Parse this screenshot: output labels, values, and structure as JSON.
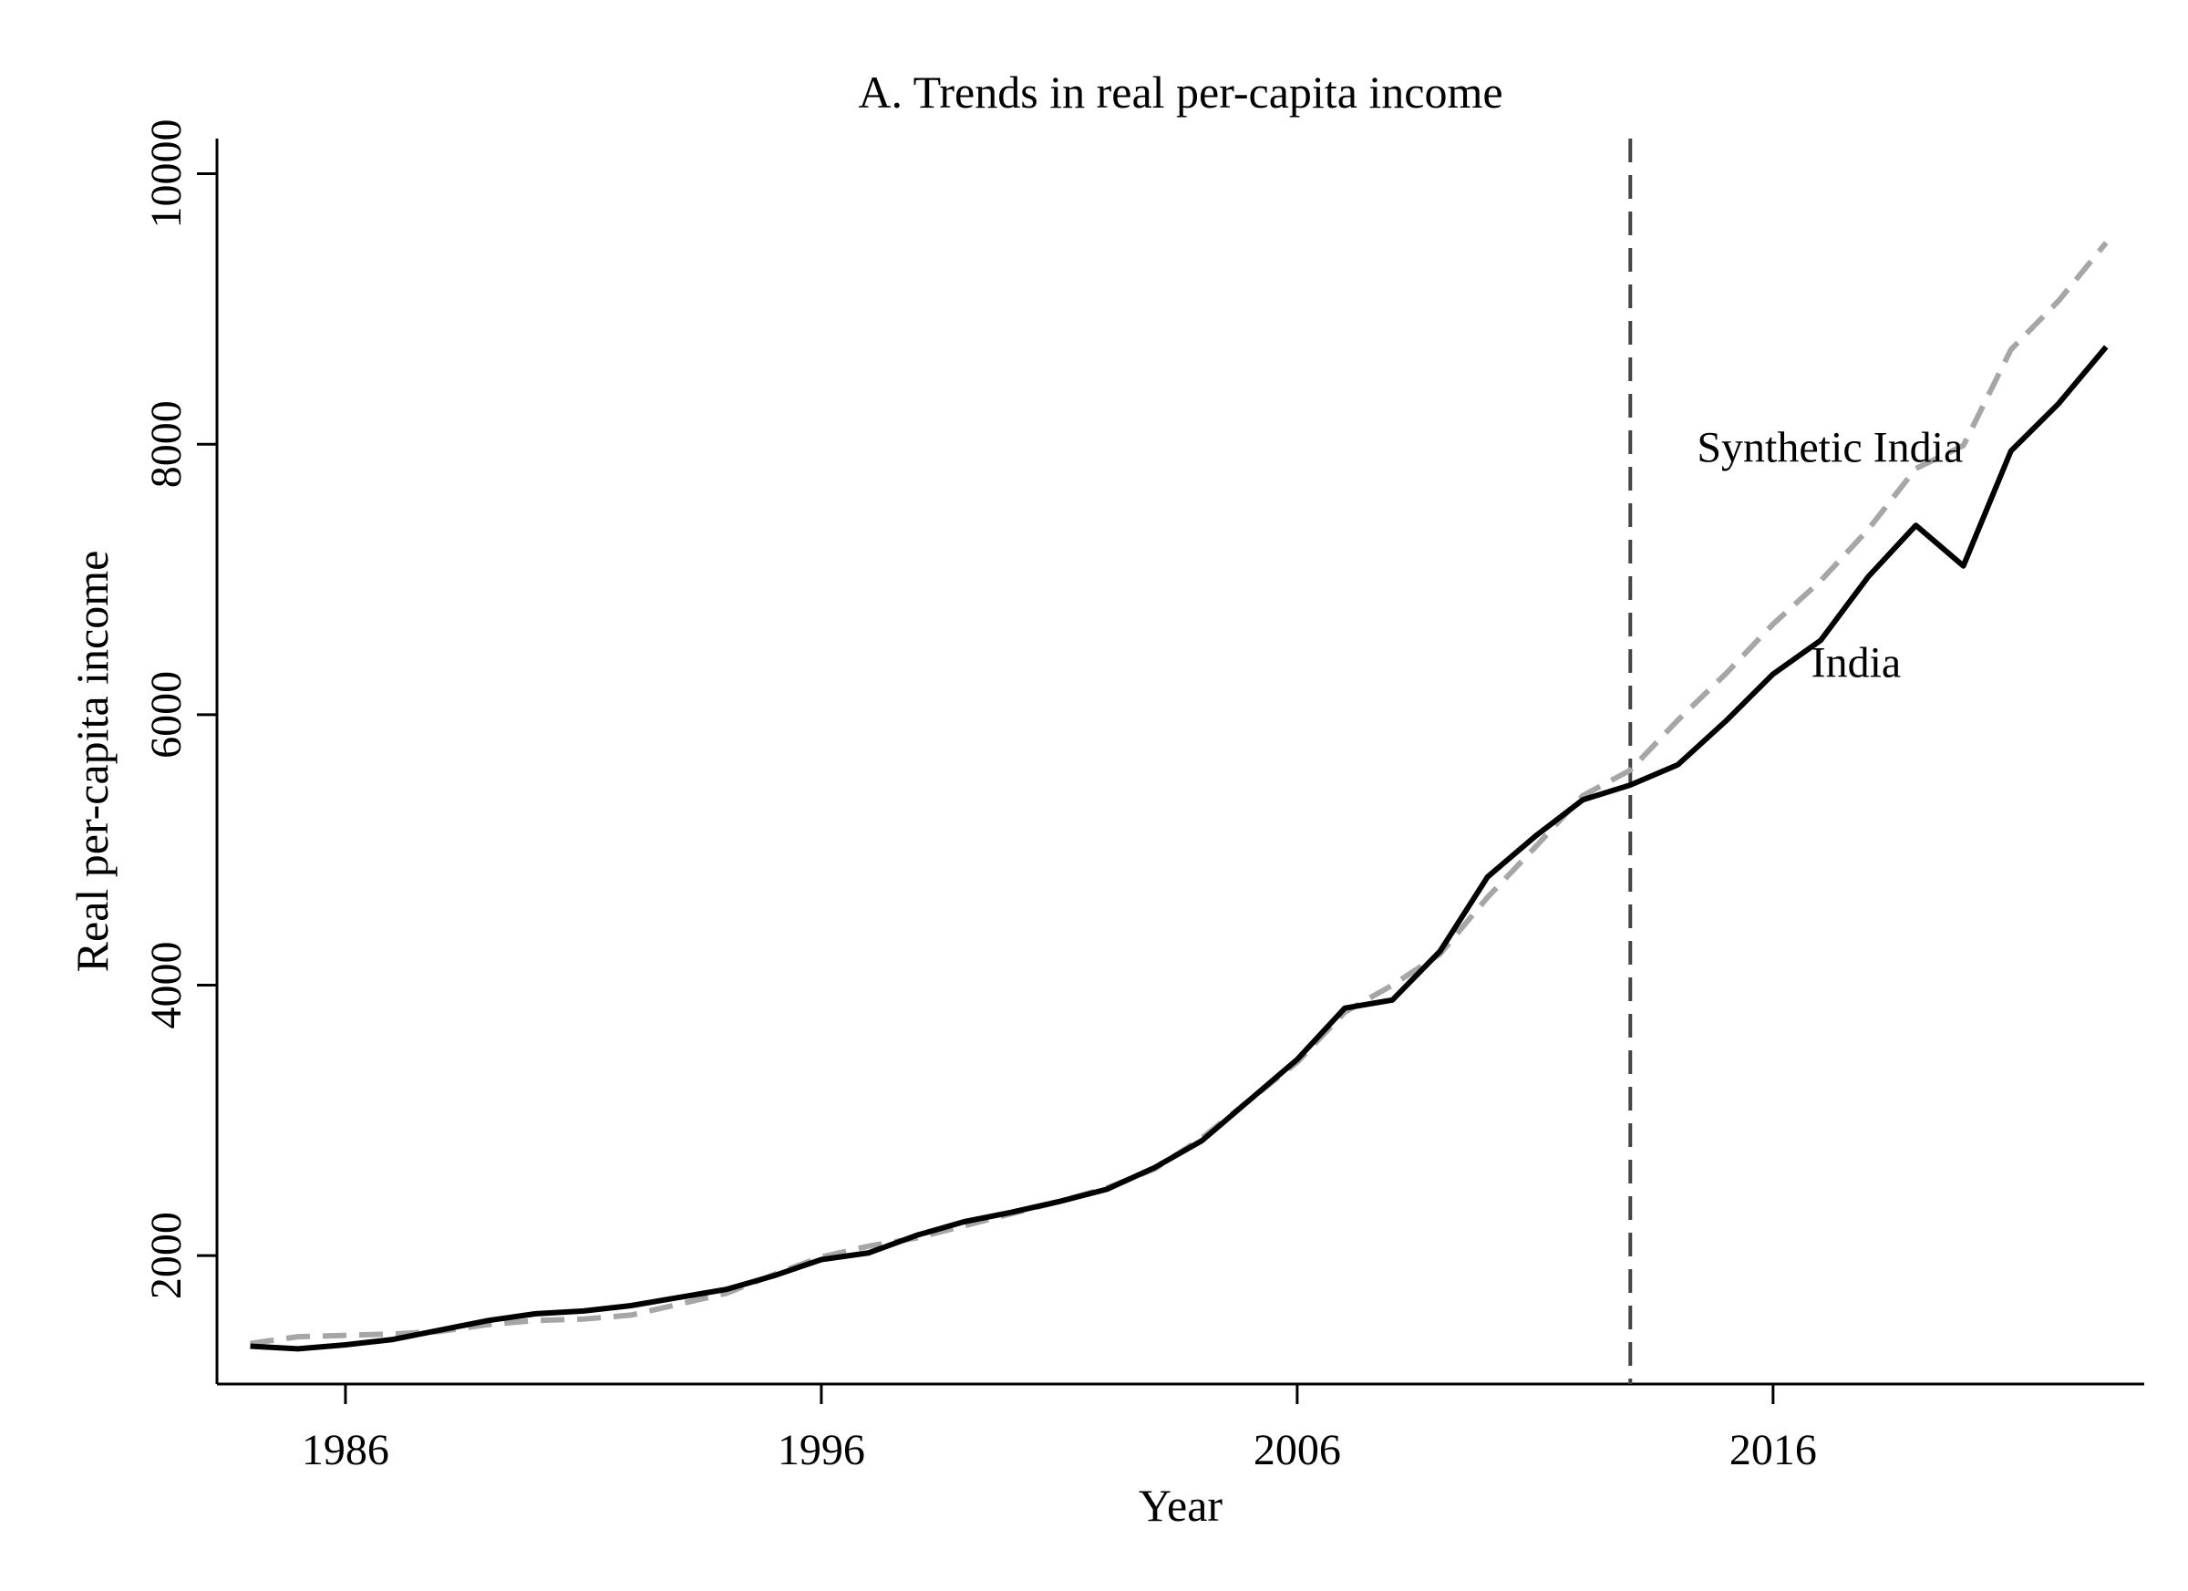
{
  "chart_data": {
    "type": "line",
    "title": "A. Trends in real per-capita income",
    "xlabel": "Year",
    "ylabel": "Real per-capita income",
    "xlim": [
      1983.3,
      2023.8
    ],
    "ylim": [
      1050,
      10260
    ],
    "x_ticks": [
      1986,
      1996,
      2006,
      2016
    ],
    "y_ticks": [
      2000,
      4000,
      6000,
      8000,
      10000
    ],
    "grid": false,
    "treatment_year": 2013,
    "treatment_line_color": "#444444",
    "x": [
      1984,
      1985,
      1986,
      1987,
      1988,
      1989,
      1990,
      1991,
      1992,
      1993,
      1994,
      1995,
      1996,
      1997,
      1998,
      1999,
      2000,
      2001,
      2002,
      2003,
      2004,
      2005,
      2006,
      2007,
      2008,
      2009,
      2010,
      2011,
      2012,
      2013,
      2014,
      2015,
      2016,
      2017,
      2018,
      2019,
      2020,
      2021,
      2022,
      2023
    ],
    "series": [
      {
        "name": "India",
        "color": "#000000",
        "dash": "solid",
        "values": [
          1330,
          1310,
          1340,
          1380,
          1450,
          1520,
          1570,
          1590,
          1630,
          1690,
          1750,
          1850,
          1970,
          2020,
          2150,
          2250,
          2320,
          2400,
          2490,
          2650,
          2850,
          3150,
          3450,
          3830,
          3890,
          4250,
          4800,
          5100,
          5370,
          5480,
          5630,
          5950,
          6300,
          6550,
          7020,
          7400,
          7100,
          7950,
          8300,
          8720
        ]
      },
      {
        "name": "Synthetic India",
        "color": "#a6a6a6",
        "dash": "dashed",
        "values": [
          1350,
          1400,
          1410,
          1420,
          1440,
          1490,
          1520,
          1530,
          1560,
          1640,
          1720,
          1860,
          1990,
          2070,
          2130,
          2220,
          2310,
          2400,
          2500,
          2640,
          2870,
          3150,
          3430,
          3800,
          4000,
          4230,
          4650,
          5020,
          5400,
          5590,
          5960,
          6300,
          6670,
          6990,
          7370,
          7820,
          7990,
          8700,
          9060,
          9490
        ]
      }
    ],
    "annotations": [
      {
        "text": "Synthetic India",
        "x": 2014.4,
        "y": 7870
      },
      {
        "text": "India",
        "x": 2016.8,
        "y": 6280
      }
    ]
  }
}
